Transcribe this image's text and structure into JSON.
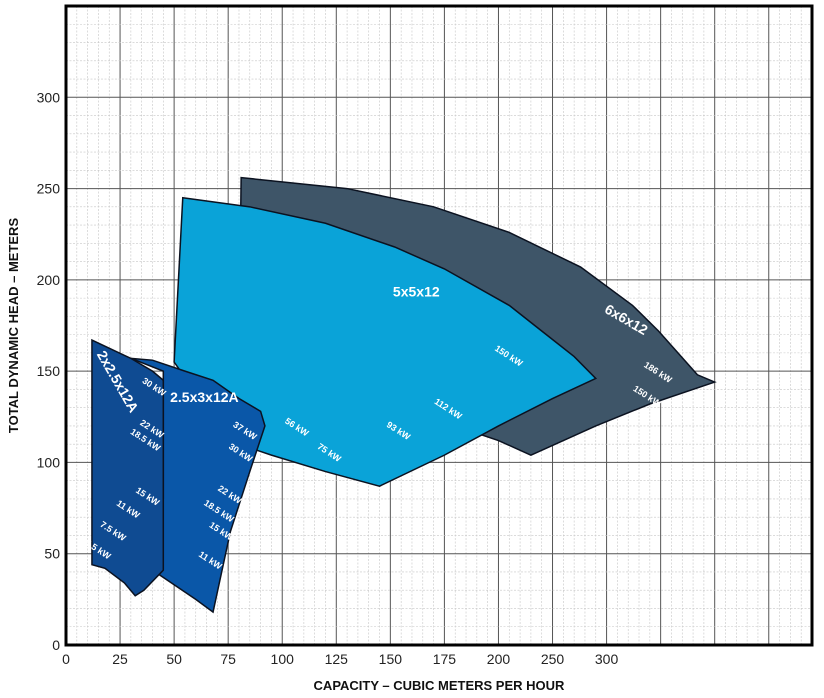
{
  "chart_data": {
    "type": "area",
    "xlabel": "CAPACITY – CUBIC METERS PER HOUR",
    "ylabel": "TOTAL DYNAMIC HEAD – METERS",
    "xlim": [
      0,
      345
    ],
    "ylim": [
      0,
      350
    ],
    "x_ticks": [
      "0",
      "25",
      "50",
      "75",
      "100",
      "125",
      "150",
      "175",
      "200",
      "250",
      "300"
    ],
    "y_ticks": [
      "0",
      "50",
      "100",
      "150",
      "200",
      "250",
      "300"
    ],
    "grid": true,
    "series": [
      {
        "name": "6x6x12",
        "color": "#3e5568",
        "outline": [
          [
            81,
            256
          ],
          [
            130,
            250
          ],
          [
            170,
            240
          ],
          [
            205,
            226
          ],
          [
            238,
            207
          ],
          [
            262,
            186
          ],
          [
            274,
            172
          ],
          [
            283,
            160
          ],
          [
            292,
            148
          ],
          [
            300,
            144
          ],
          [
            270,
            132
          ],
          [
            245,
            120
          ],
          [
            215,
            104
          ],
          [
            200,
            112
          ],
          [
            170,
            124
          ],
          [
            150,
            132
          ],
          [
            120,
            145
          ],
          [
            80,
            160
          ]
        ],
        "power_labels": [
          {
            "text": "186 kW",
            "x": 273,
            "y": 148
          },
          {
            "text": "150 kW",
            "x": 268,
            "y": 135
          }
        ]
      },
      {
        "name": "5x5x12",
        "color": "#0aa3d8",
        "outline": [
          [
            54,
            245
          ],
          [
            85,
            240
          ],
          [
            120,
            231
          ],
          [
            152,
            218
          ],
          [
            175,
            206
          ],
          [
            205,
            186
          ],
          [
            220,
            172
          ],
          [
            235,
            158
          ],
          [
            245,
            146
          ],
          [
            225,
            135
          ],
          [
            200,
            120
          ],
          [
            175,
            104
          ],
          [
            145,
            87
          ],
          [
            120,
            95
          ],
          [
            95,
            104
          ],
          [
            85,
            108
          ],
          [
            71,
            119
          ],
          [
            64,
            132
          ],
          [
            59,
            140
          ],
          [
            50,
            155
          ]
        ],
        "power_labels": [
          {
            "text": "150 kW",
            "x": 204,
            "y": 157
          },
          {
            "text": "112 kW",
            "x": 176,
            "y": 128
          },
          {
            "text": "93 kW",
            "x": 153,
            "y": 116
          },
          {
            "text": "75 kW",
            "x": 121,
            "y": 104
          },
          {
            "text": "56 kW",
            "x": 106,
            "y": 118
          }
        ]
      },
      {
        "name": "2.5x3x12A",
        "color": "#0a57a8",
        "outline": [
          [
            30,
            157
          ],
          [
            40,
            156
          ],
          [
            55,
            150
          ],
          [
            68,
            145
          ],
          [
            80,
            135
          ],
          [
            90,
            128
          ],
          [
            92,
            120
          ],
          [
            85,
            95
          ],
          [
            76,
            62
          ],
          [
            68,
            18
          ],
          [
            60,
            25
          ],
          [
            50,
            33
          ],
          [
            40,
            41
          ],
          [
            45,
            80
          ],
          [
            45,
            150
          ]
        ],
        "power_labels": [
          {
            "text": "37 kW",
            "x": 82,
            "y": 116
          },
          {
            "text": "30 kW",
            "x": 80,
            "y": 104
          },
          {
            "text": "22 kW",
            "x": 75,
            "y": 81
          },
          {
            "text": "18.5 kW",
            "x": 70,
            "y": 72
          },
          {
            "text": "15 kW",
            "x": 71,
            "y": 61
          },
          {
            "text": "11 kW",
            "x": 66,
            "y": 45
          }
        ]
      },
      {
        "name": "2x2.5x12A",
        "color": "#0f4b92",
        "outline": [
          [
            12,
            167
          ],
          [
            30,
            157
          ],
          [
            40,
            150
          ],
          [
            45,
            145
          ],
          [
            45,
            41
          ],
          [
            36,
            30
          ],
          [
            32,
            27
          ],
          [
            27,
            34
          ],
          [
            18,
            42
          ],
          [
            12,
            44
          ]
        ],
        "power_labels": [
          {
            "text": "30 kW",
            "x": 40,
            "y": 140
          },
          {
            "text": "22 kW",
            "x": 39,
            "y": 117
          },
          {
            "text": "18.5 kW",
            "x": 36,
            "y": 111
          },
          {
            "text": "15 kW",
            "x": 37,
            "y": 80
          },
          {
            "text": "11 kW",
            "x": 28,
            "y": 73
          },
          {
            "text": "7.5 kW",
            "x": 21,
            "y": 61
          },
          {
            "text": "5.5 kW",
            "x": 14,
            "y": 51
          }
        ]
      }
    ]
  }
}
